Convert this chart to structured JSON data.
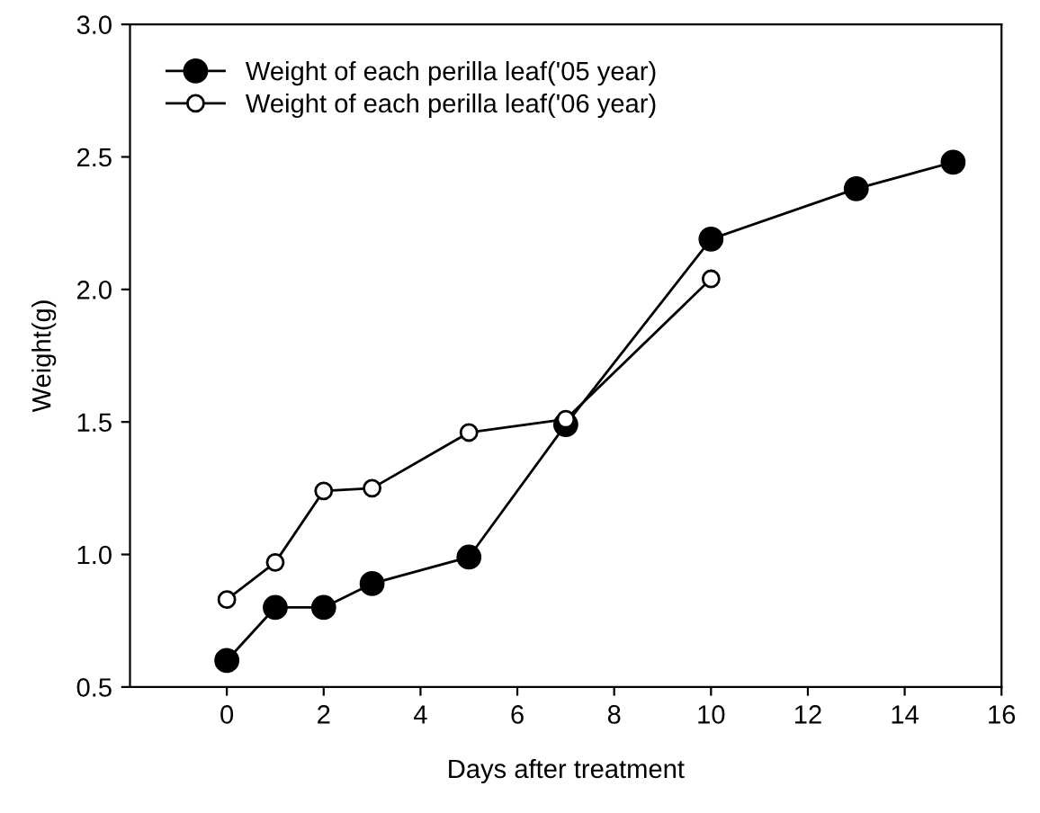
{
  "chart_data": {
    "type": "line",
    "xlabel": "Days after treatment",
    "ylabel": "Weight(g)",
    "xlim": [
      -2,
      16
    ],
    "xticks": [
      0,
      2,
      4,
      6,
      8,
      10,
      12,
      14,
      16
    ],
    "ylim": [
      0.5,
      3.0
    ],
    "yticks": [
      {
        "value": 0.5,
        "label": "0.5"
      },
      {
        "value": 1.0,
        "label": "1.0"
      },
      {
        "value": 1.5,
        "label": "1.5"
      },
      {
        "value": 2.0,
        "label": "2.0"
      },
      {
        "value": 2.5,
        "label": "2.5"
      },
      {
        "value": 3.0,
        "label": "3.0"
      }
    ],
    "marker": "circle",
    "line_style": "solid",
    "legend": "top left",
    "grid": false,
    "series": [
      {
        "name": "Weight of each perilla leaf('05 year)",
        "color": "#000000",
        "x": [
          0,
          1,
          2,
          3,
          5,
          7,
          10,
          13,
          15
        ],
        "values": [
          0.6,
          0.8,
          0.8,
          0.89,
          0.99,
          1.49,
          2.19,
          2.38,
          2.48
        ]
      },
      {
        "name": "Weight of each perilla leaf('06 year)",
        "color": "#000000",
        "x": [
          0,
          1,
          2,
          3,
          5,
          7,
          10
        ],
        "values": [
          0.83,
          0.97,
          1.24,
          1.25,
          1.46,
          1.51,
          2.04
        ]
      }
    ]
  }
}
